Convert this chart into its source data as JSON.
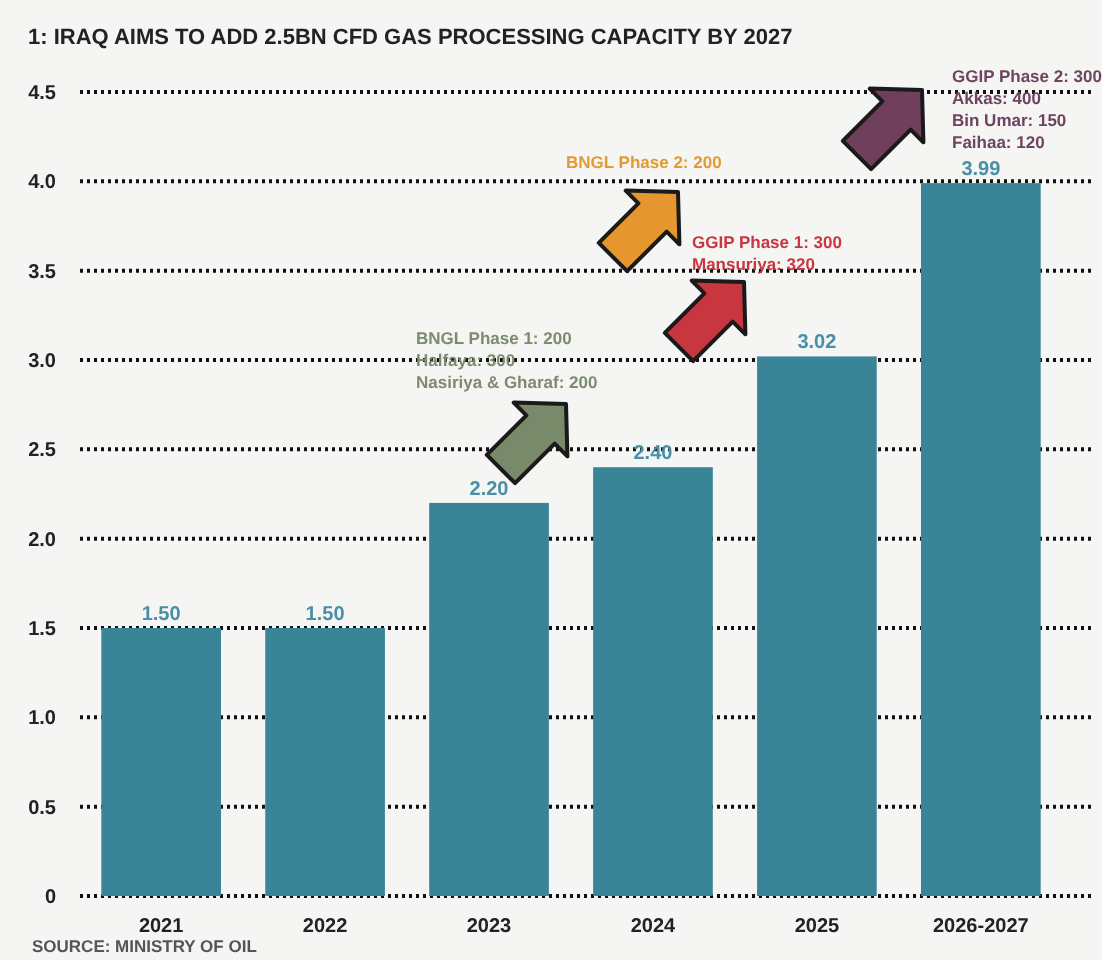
{
  "chart_data": {
    "type": "bar",
    "title": "1: IRAQ AIMS TO ADD 2.5BN CFD GAS PROCESSING CAPACITY BY 2027",
    "categories": [
      "2021",
      "2022",
      "2023",
      "2024",
      "2025",
      "2026-2027"
    ],
    "values": [
      1.5,
      1.5,
      2.2,
      2.4,
      3.02,
      3.99
    ],
    "value_labels": [
      "1.50",
      "1.50",
      "2.20",
      "2.40",
      "3.02",
      "3.99"
    ],
    "color": "#3a8497",
    "ylim": [
      0,
      4.5
    ],
    "yticks": [
      {
        "value": 0,
        "label": "0"
      },
      {
        "value": 0.5,
        "label": "0.5"
      },
      {
        "value": 1,
        "label": "1.0"
      },
      {
        "value": 1.5,
        "label": "1.5"
      },
      {
        "value": 2,
        "label": "2.0"
      },
      {
        "value": 2.5,
        "label": "2.5"
      },
      {
        "value": 3,
        "label": "3.0"
      },
      {
        "value": 3.5,
        "label": "3.5"
      },
      {
        "value": 4,
        "label": "4.0"
      },
      {
        "value": 4.5,
        "label": "4.5"
      }
    ],
    "grid": "y",
    "annotations": [
      "BNGL Phase 1: 200\nHalfaya: 300\nNasiriya & Gharaf: 200",
      "BNGL Phase 2: 200",
      "GGIP Phase 1: 300\nMansuriya: 320",
      "GGIP Phase 2: 300\nAkkas: 400\nBin Umar: 150\nFaihaa: 120",
      "SOURCE: MINISTRY OF OIL"
    ]
  }
}
